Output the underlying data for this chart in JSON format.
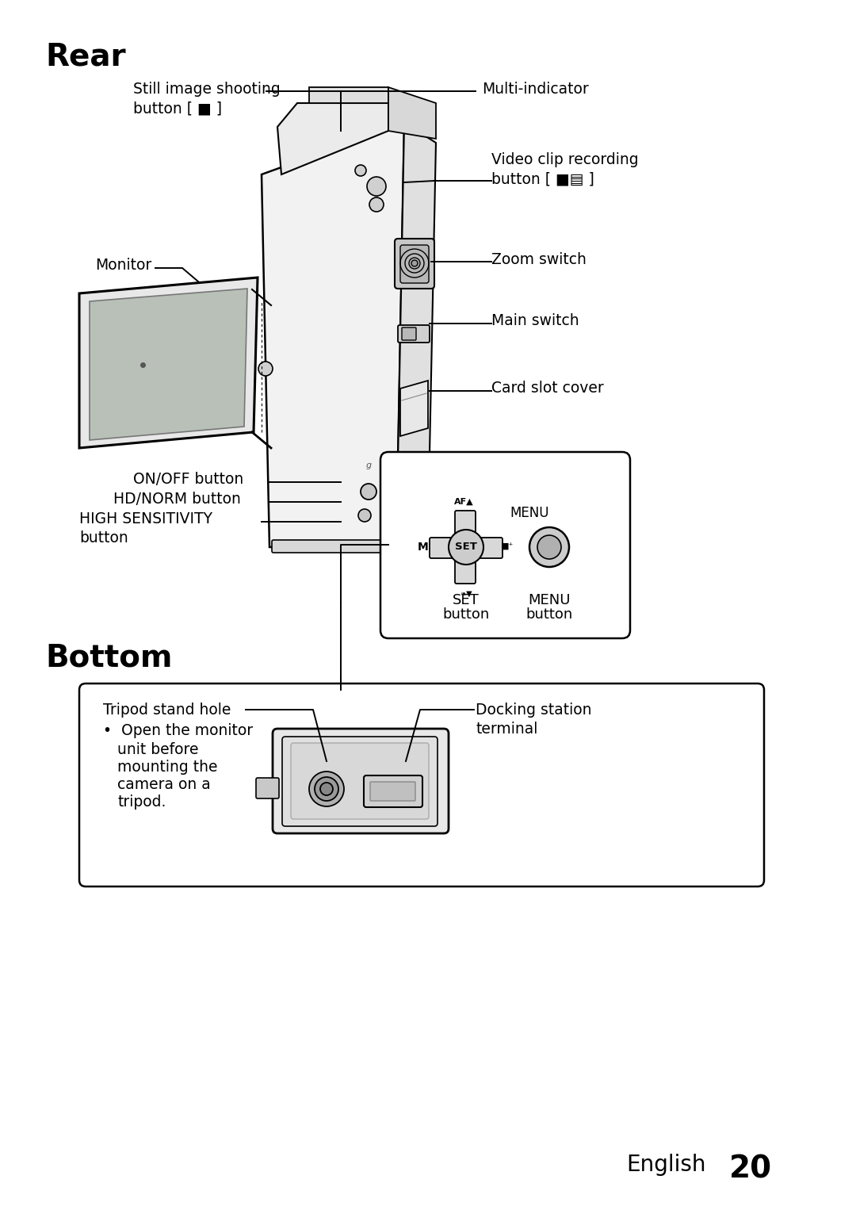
{
  "bg_color": "#ffffff",
  "title_rear": "Rear",
  "title_bottom": "Bottom",
  "page_label": "English",
  "page_number": "20"
}
